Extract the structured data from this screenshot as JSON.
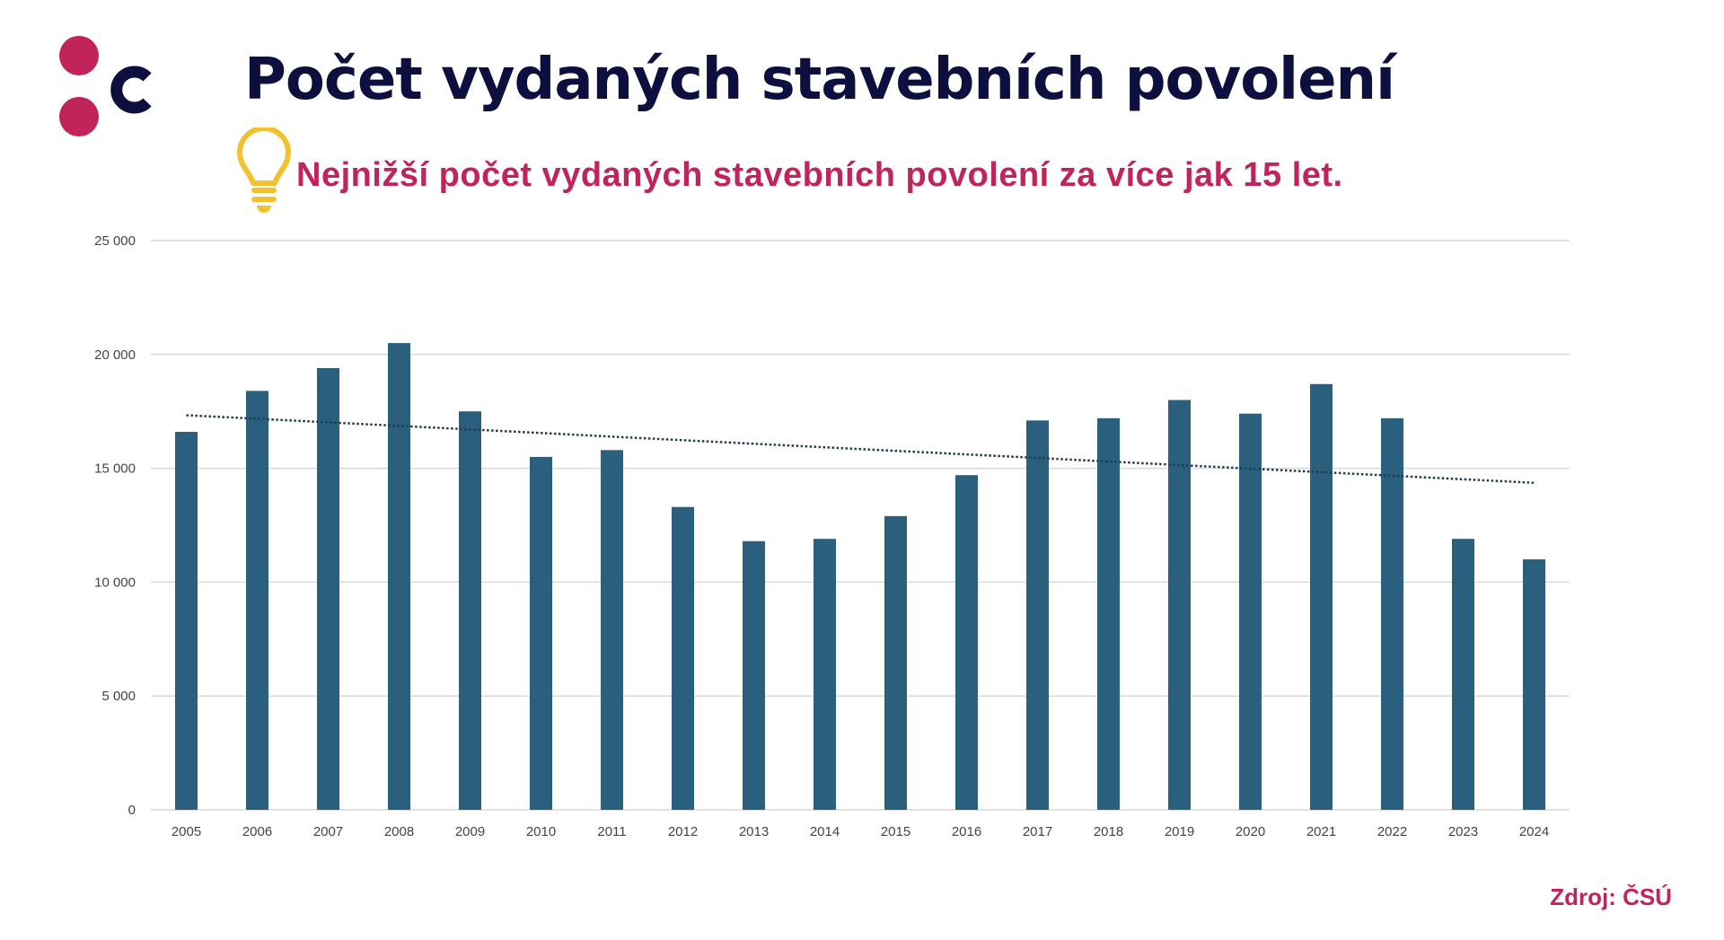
{
  "header": {
    "title": "Počet vydaných stavebních povolení",
    "subtitle": "Nejnižší počet vydaných stavebních povolení za více jak 15 let.",
    "logo_letter": "c",
    "icon": "lightbulb-icon"
  },
  "source": "Zdroj: ČSÚ",
  "colors": {
    "bar": "#2b5f7e",
    "trend": "#1e3d4f",
    "title": "#0d0f3f",
    "accent": "#c0245a",
    "bulb": "#f2c12e"
  },
  "chart_data": {
    "type": "bar",
    "title": "Počet vydaných stavebních povolení",
    "categories": [
      "2005",
      "2006",
      "2007",
      "2008",
      "2009",
      "2010",
      "2011",
      "2012",
      "2013",
      "2014",
      "2015",
      "2016",
      "2017",
      "2018",
      "2019",
      "2020",
      "2021",
      "2022",
      "2023",
      "2024"
    ],
    "values": [
      16600,
      18400,
      19400,
      20500,
      17500,
      15500,
      15800,
      13300,
      11800,
      11900,
      12900,
      14700,
      17100,
      17200,
      18000,
      17400,
      18700,
      17200,
      11900,
      11000
    ],
    "ylim": [
      0,
      25000
    ],
    "yticks": [
      0,
      5000,
      10000,
      15000,
      20000,
      25000
    ],
    "ytick_labels": [
      "0",
      "5 000",
      "10 000",
      "15 000",
      "20 000",
      "25 000"
    ],
    "grid": true,
    "trendline": {
      "type": "linear",
      "style": "dotted",
      "start": 17330,
      "end": 14360
    }
  }
}
